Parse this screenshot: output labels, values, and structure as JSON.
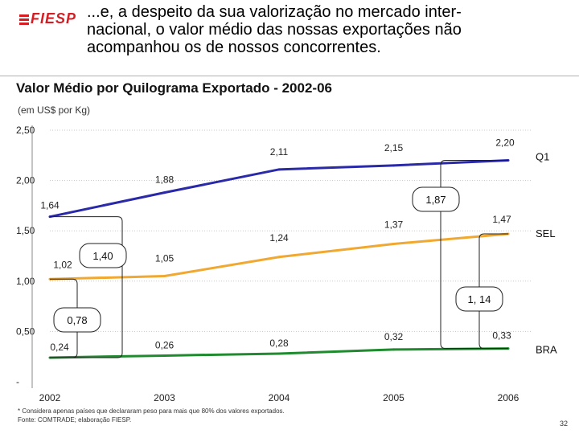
{
  "header": {
    "logo_text": "FIESP",
    "headline": "...e, a despeito da sua valorização no mercado inter-\nnacional, o valor médio das nossas exportações não\nacompanhou os de nossos concorrentes."
  },
  "chart_data": {
    "type": "line",
    "title": "Valor Médio por Quilograma Exportado - 2002-06",
    "unit_label": "(em US$ por Kg)",
    "x": [
      "2002",
      "2003",
      "2004",
      "2005",
      "2006"
    ],
    "ylim": [
      0,
      2.5
    ],
    "y_ticks": [
      "-",
      "0,50",
      "1,00",
      "1,50",
      "2,00",
      "2,50"
    ],
    "y_tick_values": [
      0,
      0.5,
      1.0,
      1.5,
      2.0,
      2.5
    ],
    "grid": true,
    "series": [
      {
        "name": "Q1",
        "color": "#2a2aa8",
        "values": [
          1.64,
          1.88,
          2.11,
          2.15,
          2.2
        ],
        "labels": [
          "1,64",
          "1,88",
          "2,11",
          "2,15",
          "2,20"
        ]
      },
      {
        "name": "SEL",
        "color": "#f0a830",
        "values": [
          1.02,
          1.05,
          1.24,
          1.37,
          1.47
        ],
        "labels": [
          "1,02",
          "1,05",
          "1,24",
          "1,37",
          "1,47"
        ]
      },
      {
        "name": "BRA",
        "color": "#1f8a2e",
        "values": [
          0.24,
          0.26,
          0.28,
          0.32,
          0.33
        ],
        "labels": [
          "0,24",
          "0,26",
          "0,28",
          "0,32",
          "0,33"
        ]
      }
    ],
    "gap_annotations": [
      {
        "label": "1,40",
        "year_index": 0,
        "from_value": 0.24,
        "to_value": 1.64
      },
      {
        "label": "0,78",
        "year_index": 0,
        "from_value": 0.24,
        "to_value": 1.02
      },
      {
        "label": "1,87",
        "year_index": 4,
        "from_value": 0.33,
        "to_value": 2.2
      },
      {
        "label": "1, 14",
        "year_index": 4,
        "from_value": 0.33,
        "to_value": 1.47
      }
    ]
  },
  "footnotes": {
    "note": "* Considera apenas países que declararam peso para mais que 80% dos valores exportados.",
    "source": "Fonte: COMTRADE; elaboração FIESP."
  },
  "page_number": "32"
}
